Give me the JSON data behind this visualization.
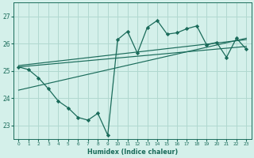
{
  "xlabel": "Humidex (Indice chaleur)",
  "bg_color": "#d4f0ea",
  "grid_color": "#b0d8d0",
  "line_color": "#1a6b5a",
  "xlim": [
    -0.5,
    23.5
  ],
  "ylim": [
    22.5,
    27.5
  ],
  "xticks": [
    0,
    1,
    2,
    3,
    4,
    5,
    6,
    7,
    8,
    9,
    10,
    11,
    12,
    13,
    14,
    15,
    16,
    17,
    18,
    19,
    20,
    21,
    22,
    23
  ],
  "yticks": [
    23,
    24,
    25,
    26,
    27
  ],
  "main_data_x": [
    0,
    1,
    2,
    3,
    4,
    5,
    6,
    7,
    8,
    9,
    10,
    11,
    12,
    13,
    14,
    15,
    16,
    17,
    18,
    19,
    20,
    21,
    22,
    23
  ],
  "main_data_y": [
    25.15,
    25.05,
    24.75,
    24.35,
    23.9,
    23.65,
    23.3,
    23.2,
    23.45,
    22.65,
    26.15,
    26.45,
    25.65,
    26.6,
    26.85,
    26.35,
    26.4,
    26.55,
    26.65,
    25.95,
    26.05,
    25.5,
    26.2,
    25.8
  ],
  "regression_lines": [
    {
      "x": [
        0,
        23
      ],
      "y": [
        25.15,
        25.9
      ]
    },
    {
      "x": [
        0,
        23
      ],
      "y": [
        25.2,
        26.15
      ]
    },
    {
      "x": [
        0,
        23
      ],
      "y": [
        24.3,
        26.2
      ]
    }
  ]
}
